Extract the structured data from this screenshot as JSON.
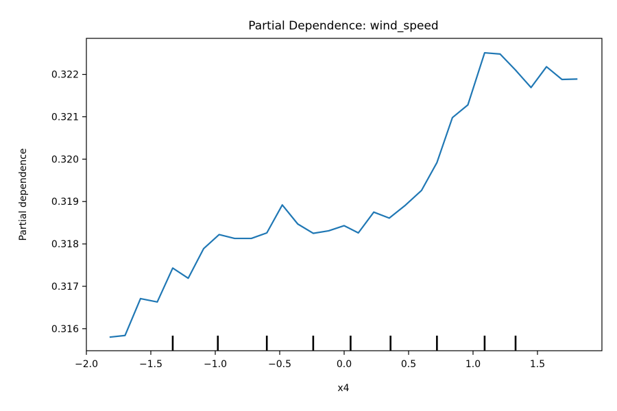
{
  "chart_data": {
    "type": "line",
    "title": "Partial Dependence: wind_speed",
    "xlabel": "x4",
    "ylabel": "Partial dependence",
    "xlim": [
      -2.0,
      2.0
    ],
    "ylim": [
      0.31548,
      0.32285
    ],
    "grid": false,
    "line_color": "#1f77b4",
    "xticks": [
      -2.0,
      -1.5,
      -1.0,
      -0.5,
      0.0,
      0.5,
      1.0,
      1.5
    ],
    "xtick_labels": [
      "−2.0",
      "−1.5",
      "−1.0",
      "−0.5",
      "0.0",
      "0.5",
      "1.0",
      "1.5"
    ],
    "yticks": [
      0.316,
      0.317,
      0.318,
      0.319,
      0.32,
      0.321,
      0.322
    ],
    "ytick_labels": [
      "0.316",
      "0.317",
      "0.318",
      "0.319",
      "0.320",
      "0.321",
      "0.322"
    ],
    "series": [
      {
        "x": [
          -1.82,
          -1.7,
          -1.58,
          -1.45,
          -1.33,
          -1.21,
          -1.09,
          -0.97,
          -0.85,
          -0.72,
          -0.6,
          -0.48,
          -0.36,
          -0.24,
          -0.12,
          0.0,
          0.11,
          0.23,
          0.35,
          0.47,
          0.6,
          0.72,
          0.84,
          0.96,
          1.09,
          1.21,
          1.33,
          1.45,
          1.57,
          1.69,
          1.81
        ],
        "values": [
          0.3158,
          0.31584,
          0.31671,
          0.31663,
          0.31743,
          0.31719,
          0.31789,
          0.31822,
          0.31813,
          0.31813,
          0.31826,
          0.31892,
          0.31847,
          0.31825,
          0.31831,
          0.31843,
          0.31826,
          0.31875,
          0.31861,
          0.3189,
          0.31926,
          0.31992,
          0.32098,
          0.32128,
          0.32251,
          0.32248,
          0.3221,
          0.32169,
          0.32218,
          0.32188,
          0.32189
        ]
      }
    ],
    "rug": [
      -1.33,
      -0.98,
      -0.6,
      -0.24,
      0.05,
      0.36,
      0.72,
      1.09,
      1.33
    ]
  }
}
